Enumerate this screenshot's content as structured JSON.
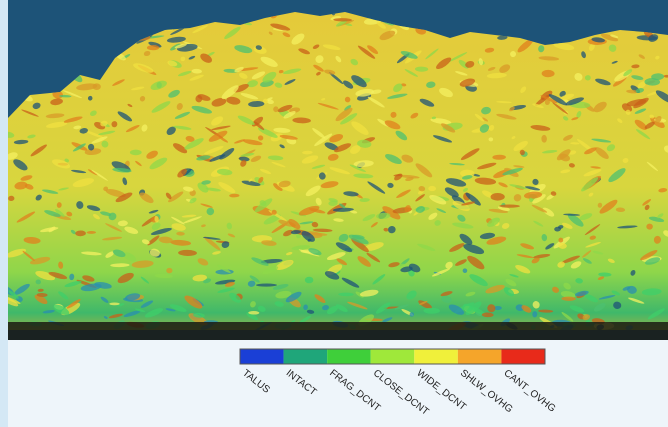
{
  "legend": {
    "items": [
      {
        "label": "TALUS",
        "color": "#1a3fd6"
      },
      {
        "label": "INTACT",
        "color": "#1fa67a"
      },
      {
        "label": "FRAG_DCNT",
        "color": "#3fcf3a"
      },
      {
        "label": "CLOSE_DCNT",
        "color": "#9fe83a"
      },
      {
        "label": "WIDE_DCNT",
        "color": "#f0f03a"
      },
      {
        "label": "SHLW_OVHG",
        "color": "#f5a52a"
      },
      {
        "label": "CANT_OVHG",
        "color": "#e82a1a"
      }
    ]
  }
}
